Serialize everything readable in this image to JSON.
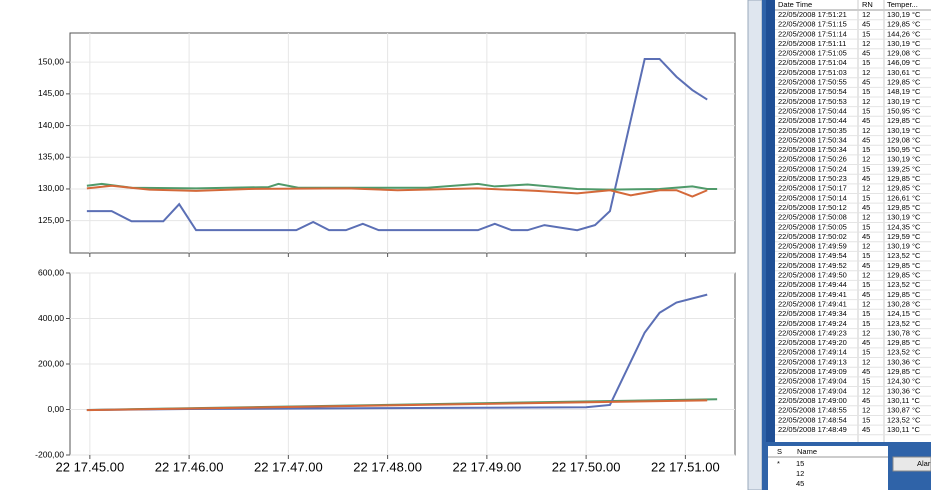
{
  "charts": [
    {
      "type": "line",
      "xlim": [
        1064.8,
        1071.5
      ],
      "ylim": [
        119.9,
        154.6
      ],
      "grid": true,
      "xticks": [
        1065,
        1066,
        1067,
        1068,
        1069,
        1070,
        1071
      ],
      "yticks": [
        {
          "value": 125,
          "label": "125,00"
        },
        {
          "value": 130,
          "label": "130,00"
        },
        {
          "value": 135,
          "label": "135,00"
        },
        {
          "value": 140,
          "label": "140,00"
        },
        {
          "value": 145,
          "label": "145,00"
        },
        {
          "value": 150,
          "label": "150,00"
        }
      ],
      "series": [
        {
          "color": "#5b6fb5",
          "x": [
            1064.97,
            1065.22,
            1065.42,
            1065.74,
            1065.9,
            1066.07,
            1067.08,
            1067.25,
            1067.41,
            1067.58,
            1067.75,
            1067.91,
            1068.41,
            1068.91,
            1069.08,
            1069.25,
            1069.41,
            1069.58,
            1069.91,
            1070.09,
            1070.24,
            1070.59,
            1070.74,
            1070.91,
            1071.07,
            1071.22
          ],
          "values": [
            126.5,
            126.5,
            124.9,
            124.9,
            127.6,
            123.5,
            123.5,
            124.8,
            123.5,
            123.5,
            124.5,
            123.5,
            123.5,
            123.5,
            124.5,
            123.5,
            123.5,
            124.3,
            123.5,
            124.3,
            126.5,
            150.5,
            150.5,
            147.7,
            145.6,
            144.1
          ]
        },
        {
          "color": "#4f9a6a",
          "x": [
            1064.97,
            1065.12,
            1065.42,
            1066.07,
            1066.8,
            1066.9,
            1067.1,
            1068.4,
            1068.91,
            1069.08,
            1069.41,
            1069.91,
            1070.24,
            1070.74,
            1071.07,
            1071.22,
            1071.32
          ],
          "values": [
            130.5,
            130.8,
            130.2,
            130.1,
            130.3,
            130.8,
            130.2,
            130.2,
            130.8,
            130.4,
            130.7,
            130.0,
            129.9,
            130.0,
            130.4,
            130.0,
            130.0
          ]
        },
        {
          "color": "#d4693a",
          "x": [
            1064.97,
            1065.22,
            1065.6,
            1066.07,
            1066.6,
            1067.6,
            1068.1,
            1068.9,
            1069.5,
            1069.91,
            1070.24,
            1070.45,
            1070.74,
            1070.91,
            1071.07,
            1071.22
          ],
          "values": [
            130.1,
            130.5,
            129.9,
            129.7,
            130.0,
            130.1,
            129.8,
            130.1,
            129.7,
            129.3,
            129.8,
            129.0,
            129.8,
            129.8,
            128.8,
            129.8
          ]
        }
      ]
    },
    {
      "type": "line",
      "xlim": [
        1064.8,
        1071.5
      ],
      "ylim": [
        -200,
        600
      ],
      "grid": true,
      "xticks": [
        {
          "value": 1065,
          "label": "22 17.45.00"
        },
        {
          "value": 1066,
          "label": "22 17.46.00"
        },
        {
          "value": 1067,
          "label": "22 17.47.00"
        },
        {
          "value": 1068,
          "label": "22 17.48.00"
        },
        {
          "value": 1069,
          "label": "22 17.49.00"
        },
        {
          "value": 1070,
          "label": "22 17.50.00"
        },
        {
          "value": 1071,
          "label": "22 17.51.00"
        }
      ],
      "yticks": [
        {
          "value": -200,
          "label": "-200,00"
        },
        {
          "value": 0,
          "label": "0,00"
        },
        {
          "value": 200,
          "label": "200,00"
        },
        {
          "value": 400,
          "label": "400,00"
        },
        {
          "value": 600,
          "label": "600,00"
        }
      ],
      "series": [
        {
          "color": "#4f9a6a",
          "x": [
            1064.97,
            1071.32
          ],
          "values": [
            -2,
            45
          ]
        },
        {
          "color": "#5b6fb5",
          "x": [
            1064.97,
            1066,
            1068,
            1070,
            1070.24,
            1070.59,
            1070.74,
            1070.91,
            1071.22
          ],
          "values": [
            -2,
            2,
            6,
            10,
            20,
            338,
            425,
            470,
            505
          ]
        },
        {
          "color": "#d4693a",
          "x": [
            1064.97,
            1071.22
          ],
          "values": [
            -3,
            40
          ]
        }
      ]
    }
  ],
  "table": {
    "columns": [
      "Date Time",
      "RN",
      "Temper..."
    ],
    "rows": [
      [
        "22/05/2008 17:51:21",
        "12",
        "130,19 °C"
      ],
      [
        "22/05/2008 17:51:15",
        "45",
        "129,85 °C"
      ],
      [
        "22/05/2008 17:51:14",
        "15",
        "144,26 °C"
      ],
      [
        "22/05/2008 17:51:11",
        "12",
        "130,19 °C"
      ],
      [
        "22/05/2008 17:51:05",
        "45",
        "129,08 °C"
      ],
      [
        "22/05/2008 17:51:04",
        "15",
        "146,09 °C"
      ],
      [
        "22/05/2008 17:51:03",
        "12",
        "130,61 °C"
      ],
      [
        "22/05/2008 17:50:55",
        "45",
        "129,85 °C"
      ],
      [
        "22/05/2008 17:50:54",
        "15",
        "148,19 °C"
      ],
      [
        "22/05/2008 17:50:53",
        "12",
        "130,19 °C"
      ],
      [
        "22/05/2008 17:50:44",
        "15",
        "150,95 °C"
      ],
      [
        "22/05/2008 17:50:44",
        "45",
        "129,85 °C"
      ],
      [
        "22/05/2008 17:50:35",
        "12",
        "130,19 °C"
      ],
      [
        "22/05/2008 17:50:34",
        "45",
        "129,08 °C"
      ],
      [
        "22/05/2008 17:50:34",
        "15",
        "150,95 °C"
      ],
      [
        "22/05/2008 17:50:26",
        "12",
        "130,19 °C"
      ],
      [
        "22/05/2008 17:50:24",
        "15",
        "139,25 °C"
      ],
      [
        "22/05/2008 17:50:23",
        "45",
        "129,85 °C"
      ],
      [
        "22/05/2008 17:50:17",
        "12",
        "129,85 °C"
      ],
      [
        "22/05/2008 17:50:14",
        "15",
        "126,61 °C"
      ],
      [
        "22/05/2008 17:50:12",
        "45",
        "129,85 °C"
      ],
      [
        "22/05/2008 17:50:08",
        "12",
        "130,19 °C"
      ],
      [
        "22/05/2008 17:50:05",
        "15",
        "124,35 °C"
      ],
      [
        "22/05/2008 17:50:02",
        "45",
        "129,59 °C"
      ],
      [
        "22/05/2008 17:49:59",
        "12",
        "130,19 °C"
      ],
      [
        "22/05/2008 17:49:54",
        "15",
        "123,52 °C"
      ],
      [
        "22/05/2008 17:49:52",
        "45",
        "129,85 °C"
      ],
      [
        "22/05/2008 17:49:50",
        "12",
        "129,85 °C"
      ],
      [
        "22/05/2008 17:49:44",
        "15",
        "123,52 °C"
      ],
      [
        "22/05/2008 17:49:41",
        "45",
        "129,85 °C"
      ],
      [
        "22/05/2008 17:49:41",
        "12",
        "130,28 °C"
      ],
      [
        "22/05/2008 17:49:34",
        "15",
        "124,15 °C"
      ],
      [
        "22/05/2008 17:49:24",
        "15",
        "123,52 °C"
      ],
      [
        "22/05/2008 17:49:23",
        "12",
        "130,78 °C"
      ],
      [
        "22/05/2008 17:49:20",
        "45",
        "129,85 °C"
      ],
      [
        "22/05/2008 17:49:14",
        "15",
        "123,52 °C"
      ],
      [
        "22/05/2008 17:49:13",
        "12",
        "130,36 °C"
      ],
      [
        "22/05/2008 17:49:09",
        "45",
        "129,85 °C"
      ],
      [
        "22/05/2008 17:49:04",
        "15",
        "124,30 °C"
      ],
      [
        "22/05/2008 17:49:04",
        "12",
        "130,36 °C"
      ],
      [
        "22/05/2008 17:49:00",
        "45",
        "130,11 °C"
      ],
      [
        "22/05/2008 17:48:55",
        "12",
        "130,87 °C"
      ],
      [
        "22/05/2008 17:48:54",
        "15",
        "123,52 °C"
      ],
      [
        "22/05/2008 17:48:49",
        "45",
        "130,11 °C"
      ]
    ]
  },
  "name_table": {
    "columns": [
      "S",
      "Name"
    ],
    "rows": [
      {
        "marker": "*",
        "name": "15"
      },
      {
        "name": "12"
      },
      {
        "name": "45"
      }
    ]
  },
  "button": "Alar"
}
